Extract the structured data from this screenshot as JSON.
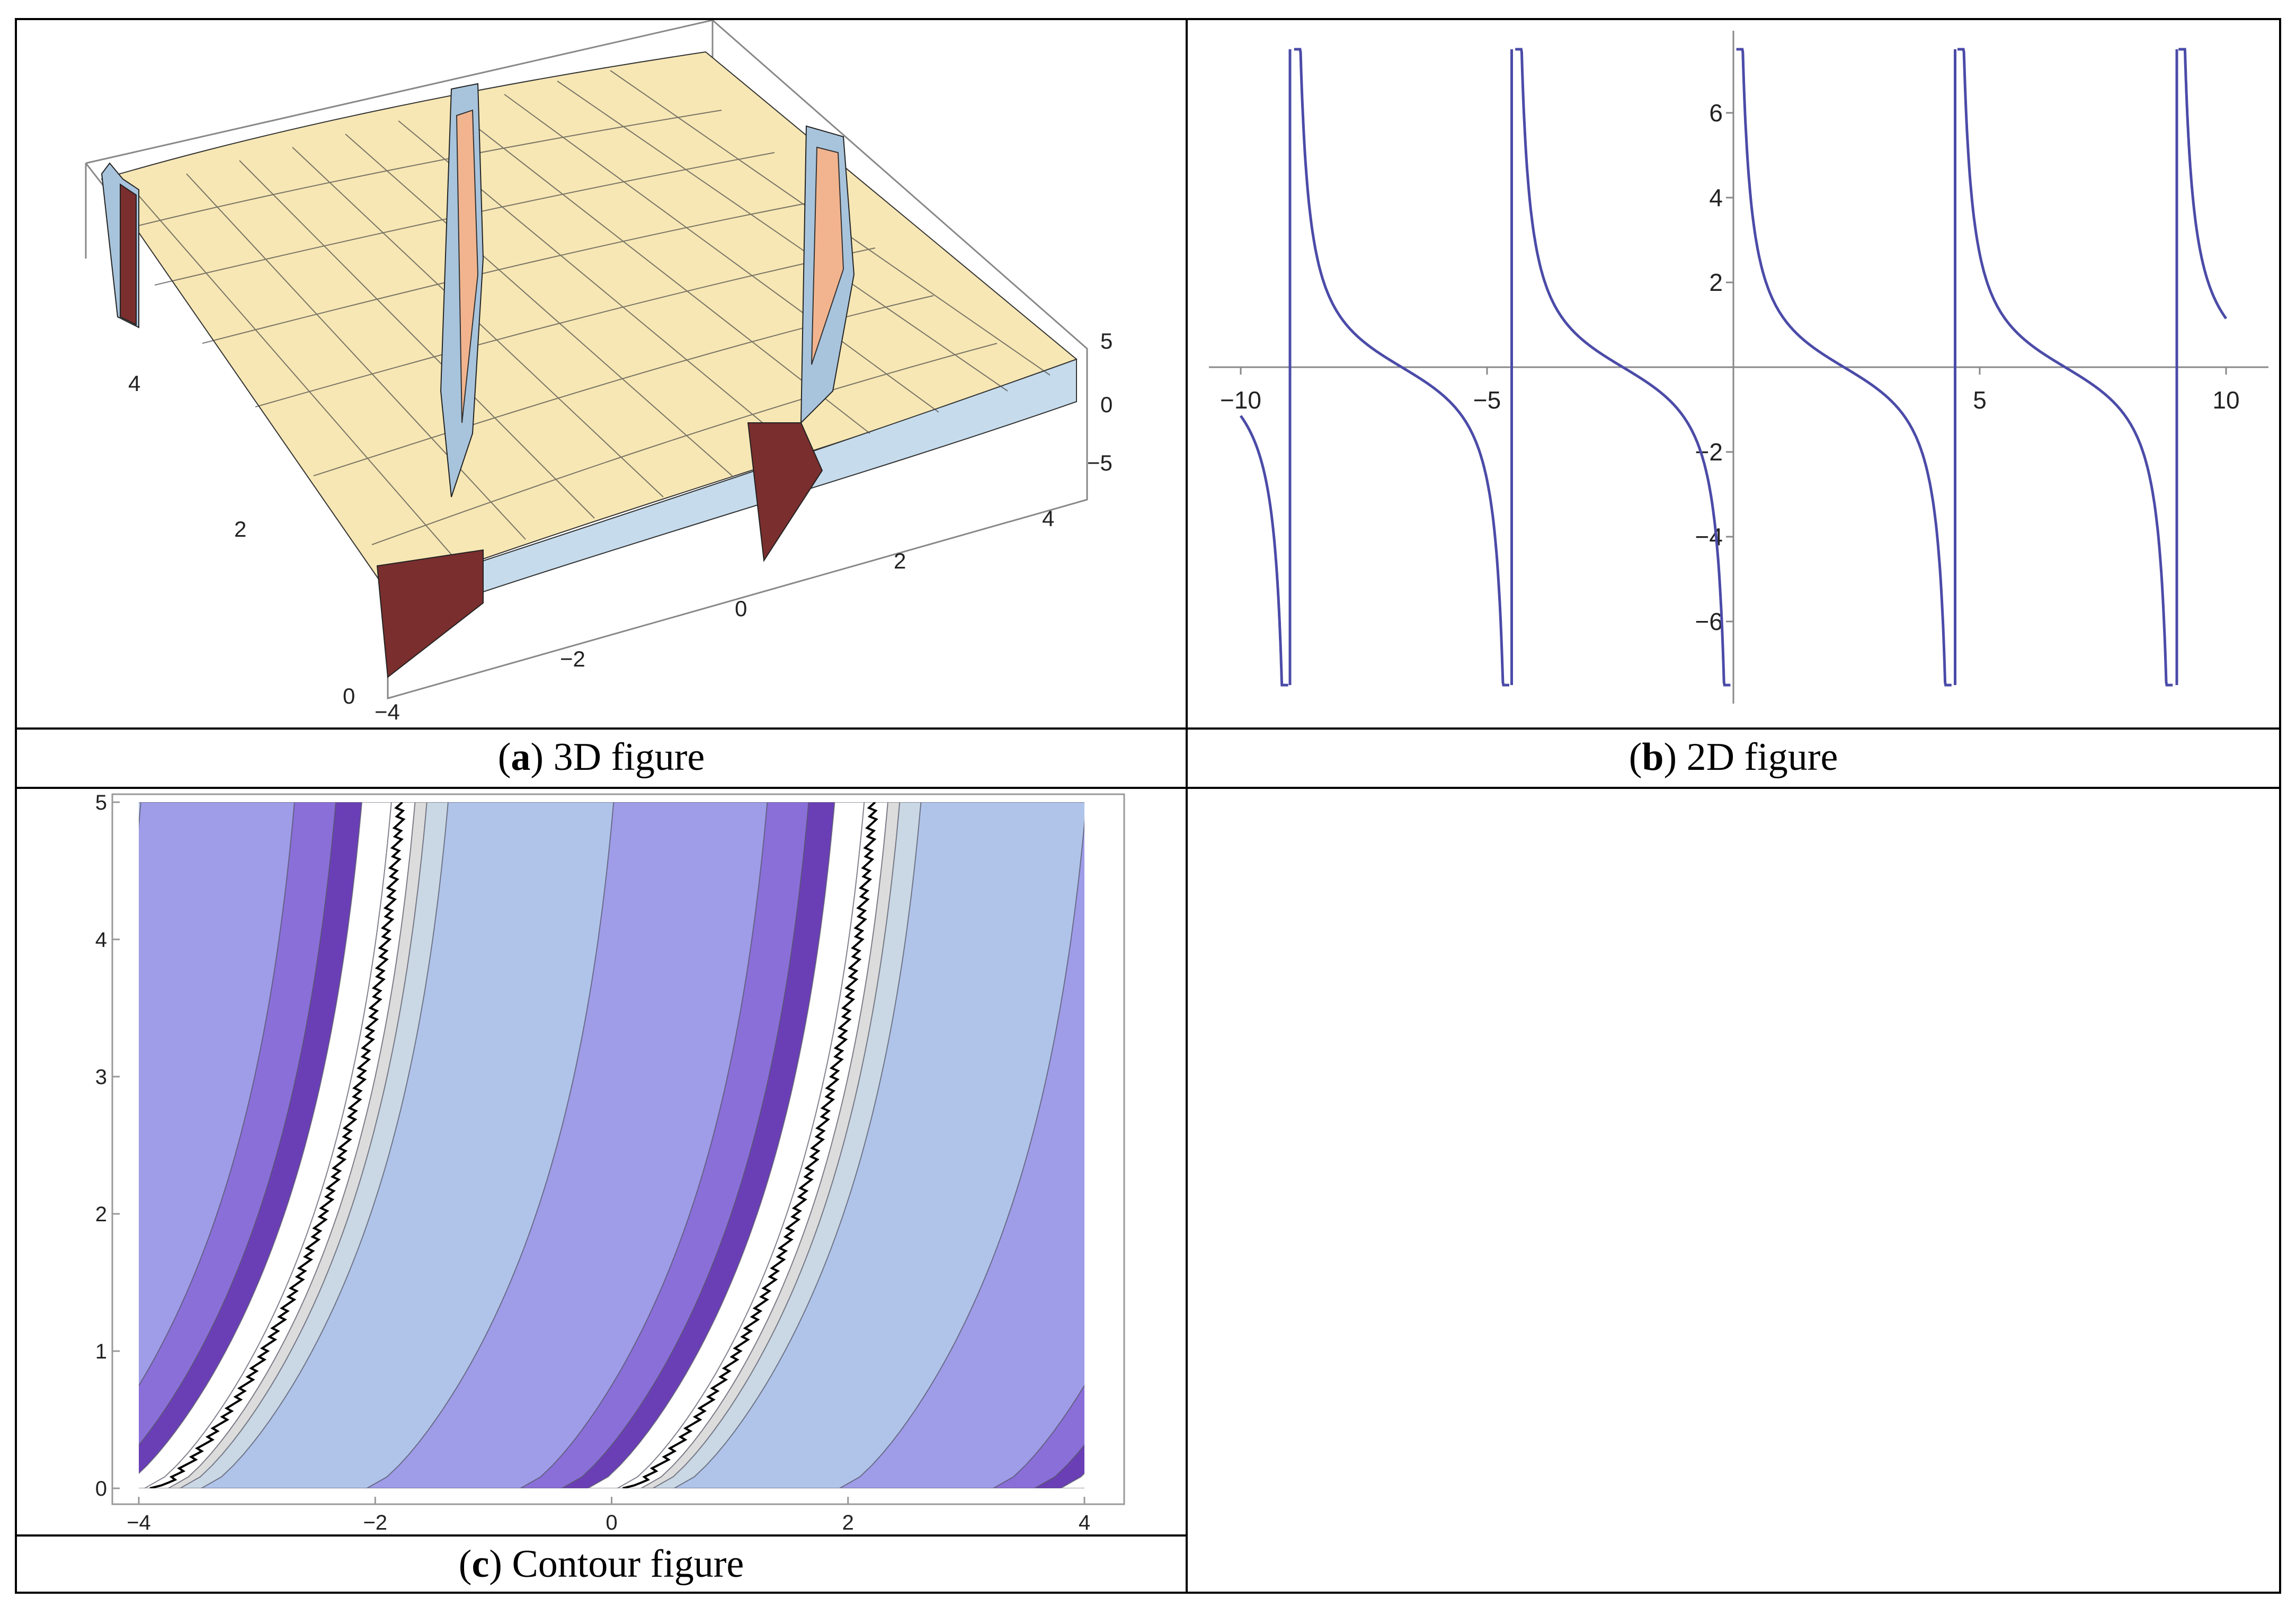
{
  "captions": {
    "a": {
      "letter": "a",
      "text": "3D figure"
    },
    "b": {
      "letter": "b",
      "text": "2D figure"
    },
    "c": {
      "letter": "c",
      "text": "Contour figure"
    }
  },
  "chart_data": [
    {
      "type": "surface",
      "id": "a",
      "x_ticks": [
        "−4",
        "−2",
        "0",
        "2",
        "4"
      ],
      "y_ticks": [
        "0",
        "2",
        "4"
      ],
      "z_ticks": [
        "5",
        "0",
        "−5"
      ],
      "xlim": [
        -4,
        4
      ],
      "ylim": [
        0,
        5
      ],
      "zlim": [
        -7,
        7
      ],
      "colors": {
        "surface": "#f7e7b4",
        "cliff_dark": "#7a2e2e",
        "cliff_light": "#a8c4dc",
        "peaks": "#f2b48e"
      }
    },
    {
      "type": "line",
      "id": "b",
      "x_ticks": [
        -10,
        -5,
        5,
        10
      ],
      "y_ticks": [
        6,
        4,
        2,
        -2,
        -4,
        -6
      ],
      "xlim": [
        -10,
        10
      ],
      "ylim": [
        -7.5,
        7.5
      ],
      "asymptotes": [
        -9.0,
        -4.5,
        0,
        4.5,
        9.0
      ],
      "series": [
        {
          "color": "#4b4ba8"
        }
      ]
    },
    {
      "type": "contour",
      "id": "c",
      "x_ticks": [
        -4,
        -2,
        0,
        2,
        4
      ],
      "y_ticks": [
        0,
        1,
        2,
        3,
        4,
        5
      ],
      "xlim": [
        -4,
        4
      ],
      "ylim": [
        0,
        5
      ],
      "colors": {
        "band_light": "#b0c4ea",
        "band_mid": "#9f9ce8",
        "band_dark": "#8a6fd9",
        "band_deep": "#6a3fb6",
        "band_gray": "#c9d8e4",
        "line": "#000000"
      }
    }
  ]
}
